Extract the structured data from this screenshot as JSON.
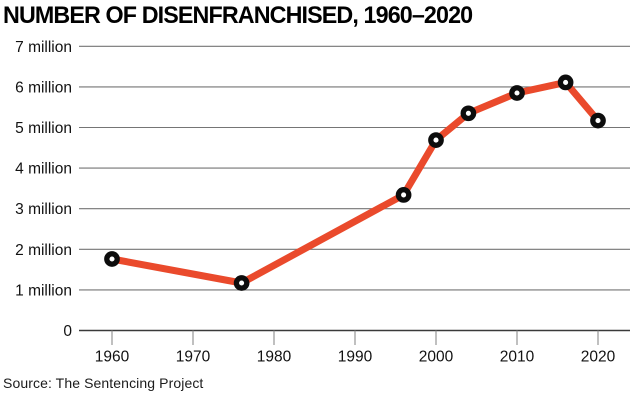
{
  "title": "NUMBER OF DISENFRANCHISED, 1960–2020",
  "source": {
    "text": "Source: The Sentencing Project"
  },
  "chart_data": {
    "type": "line",
    "title": "NUMBER OF DISENFRANCHISED, 1960–2020",
    "x": [
      1960,
      1976,
      1996,
      2000,
      2004,
      2010,
      2016,
      2020
    ],
    "values": [
      1.76,
      1.17,
      3.34,
      4.69,
      5.35,
      5.85,
      6.11,
      5.17
    ],
    "unit": "million persons",
    "xlabel": "",
    "ylabel": "",
    "xlim": [
      1960,
      2020
    ],
    "ylim": [
      0,
      7
    ],
    "x_tick_years": [
      1960,
      1970,
      1980,
      1990,
      2000,
      2010,
      2020
    ],
    "x_tick_labels": [
      "1960",
      "1970",
      "1980",
      "1990",
      "2000",
      "2010",
      "2020"
    ],
    "y_tick_values": [
      0,
      1,
      2,
      3,
      4,
      5,
      6,
      7
    ],
    "y_tick_labels": [
      "0",
      "1 million",
      "2 million",
      "3 million",
      "4 million",
      "5 million",
      "6 million",
      "7 million"
    ],
    "grid": "horizontal-on",
    "legend": "none",
    "marker": "black-donut",
    "colors": {
      "line": "#EA4A2C",
      "marker_ring": "#0D0D0D",
      "marker_hole": "#FFFFFF",
      "gridline": "#757575",
      "axis_line": "#3A3A3A",
      "tick_mark": "#8C8C8C",
      "tick_text": "#121212",
      "background": "#FFFFFF"
    }
  }
}
